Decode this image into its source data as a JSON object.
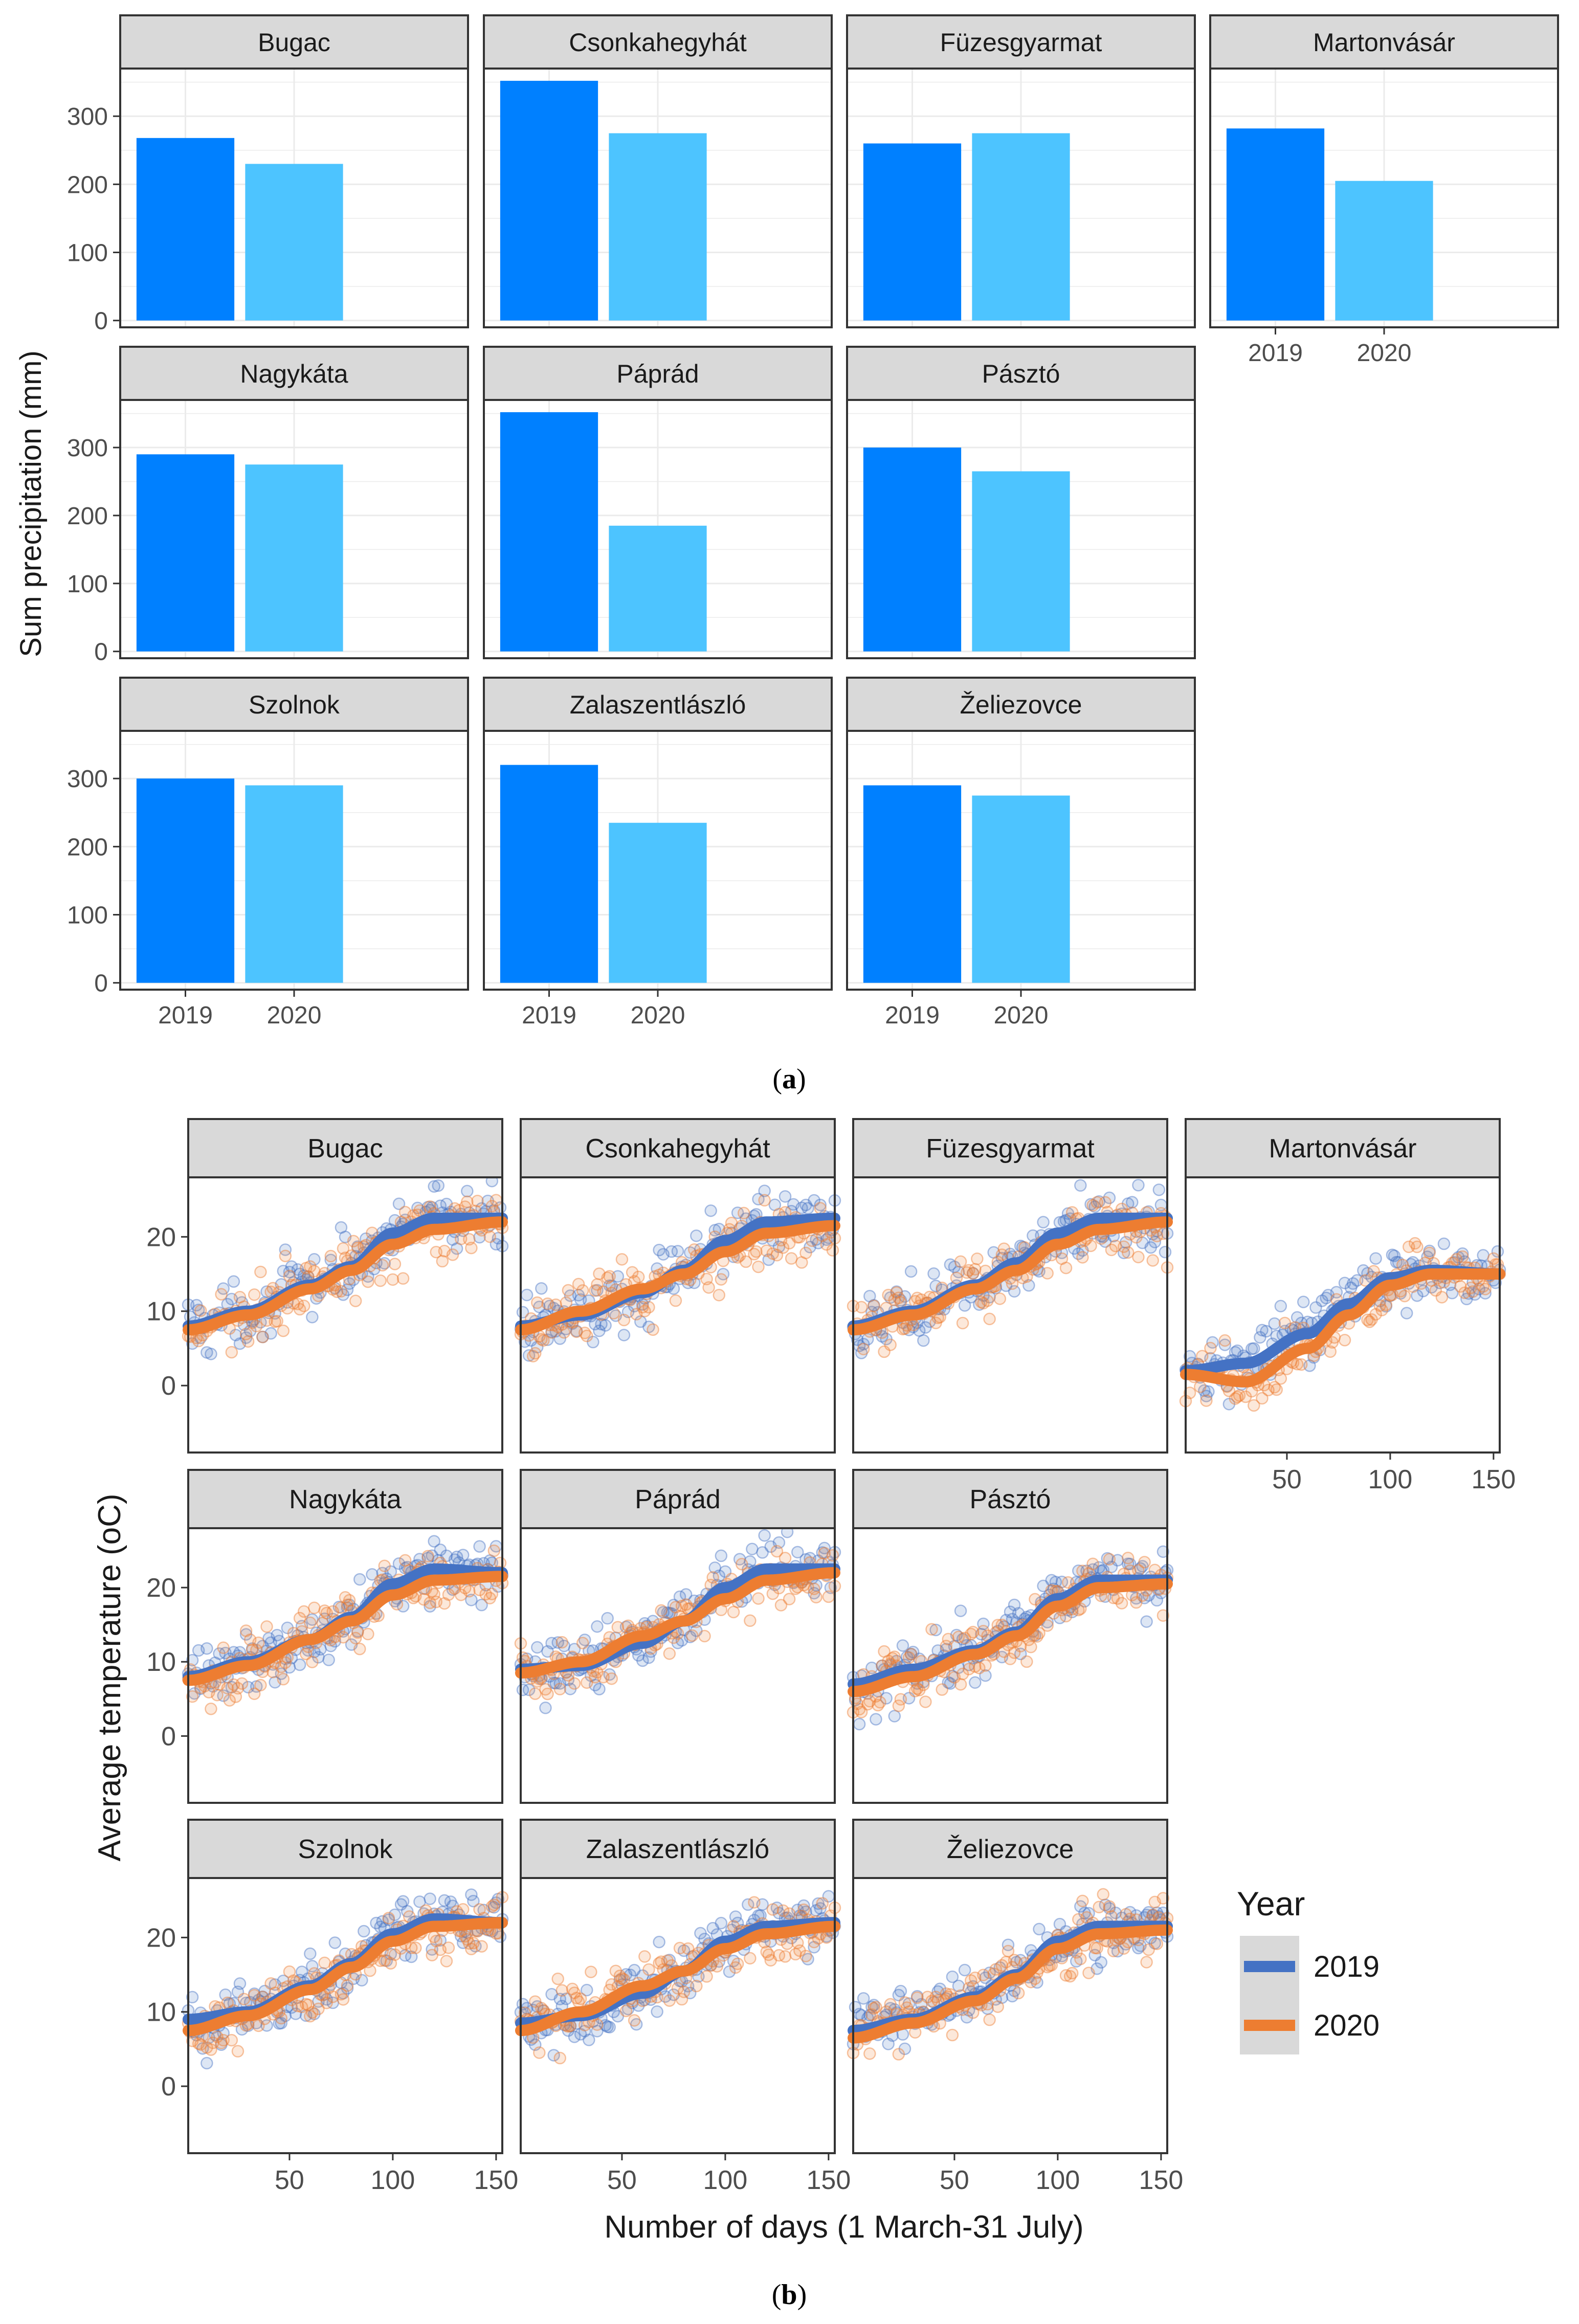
{
  "figure": {
    "caption_a": {
      "open": "(",
      "letter": "a",
      "close": ")"
    },
    "caption_b": {
      "open": "(",
      "letter": "b",
      "close": ")"
    }
  },
  "colors": {
    "bar_2019": "#0080ff",
    "bar_2020": "#4dc4ff",
    "line_2019": "#4472c4",
    "line_2020": "#ed7d31",
    "strip_fill": "#d9d9d9",
    "panel_border": "#333333",
    "grid": "#ebebeb"
  },
  "chart_data": [
    {
      "type": "bar",
      "ylabel": "Sum precipitation (mm)",
      "xlabel": "",
      "categories": [
        "2019",
        "2020"
      ],
      "yticks": [
        0,
        100,
        200,
        300
      ],
      "ylim": [
        -10,
        370
      ],
      "grid": true,
      "facets": [
        {
          "name": "Bugac",
          "values": [
            268,
            230
          ]
        },
        {
          "name": "Csonkahegyhát",
          "values": [
            352,
            275
          ]
        },
        {
          "name": "Füzesgyarmat",
          "values": [
            260,
            275
          ]
        },
        {
          "name": "Martonvásár",
          "values": [
            282,
            205
          ]
        },
        {
          "name": "Nagykáta",
          "values": [
            290,
            275
          ]
        },
        {
          "name": "Páprád",
          "values": [
            352,
            185
          ]
        },
        {
          "name": "Pásztó",
          "values": [
            300,
            265
          ]
        },
        {
          "name": "Szolnok",
          "values": [
            300,
            290
          ]
        },
        {
          "name": "Zalaszentlászló",
          "values": [
            320,
            235
          ]
        },
        {
          "name": "Želiezovce",
          "values": [
            290,
            275
          ]
        }
      ]
    },
    {
      "type": "scatter",
      "ylabel": "Average temperature (oC)",
      "xlabel": "Number of days (1 March-31 July)",
      "xlim": [
        1,
        153
      ],
      "ylim": [
        -9,
        28
      ],
      "xticks": [
        50,
        100,
        150
      ],
      "yticks": [
        0,
        10,
        20
      ],
      "grid": false,
      "legend": {
        "title": "Year",
        "position": "right",
        "entries": [
          "2019",
          "2020"
        ]
      },
      "series": [
        {
          "name": "2019",
          "color": "#4472c4"
        },
        {
          "name": "2020",
          "color": "#ed7d31"
        }
      ],
      "facets": [
        {
          "name": "Bugac",
          "trend_2019": [
            [
              1,
              8
            ],
            [
              30,
              10
            ],
            [
              60,
              13.5
            ],
            [
              80,
              16
            ],
            [
              100,
              20.5
            ],
            [
              120,
              22.5
            ],
            [
              153,
              22.5
            ]
          ],
          "trend_2020": [
            [
              1,
              7.5
            ],
            [
              30,
              9.5
            ],
            [
              60,
              13
            ],
            [
              80,
              15.5
            ],
            [
              100,
              19
            ],
            [
              120,
              21
            ],
            [
              153,
              22
            ]
          ]
        },
        {
          "name": "Csonkahegyhát",
          "trend_2019": [
            [
              1,
              8
            ],
            [
              30,
              9.5
            ],
            [
              60,
              12.5
            ],
            [
              80,
              15.5
            ],
            [
              100,
              19.5
            ],
            [
              120,
              22
            ],
            [
              153,
              22.5
            ]
          ],
          "trend_2020": [
            [
              1,
              7.5
            ],
            [
              30,
              10
            ],
            [
              60,
              13
            ],
            [
              80,
              15
            ],
            [
              100,
              18
            ],
            [
              120,
              20.5
            ],
            [
              153,
              21.5
            ]
          ]
        },
        {
          "name": "Füzesgyarmat",
          "trend_2019": [
            [
              1,
              8
            ],
            [
              30,
              10
            ],
            [
              60,
              13.5
            ],
            [
              80,
              16.5
            ],
            [
              100,
              20.5
            ],
            [
              120,
              22.5
            ],
            [
              153,
              22.5
            ]
          ],
          "trend_2020": [
            [
              1,
              7.5
            ],
            [
              30,
              9.5
            ],
            [
              60,
              13
            ],
            [
              80,
              15.5
            ],
            [
              100,
              19
            ],
            [
              120,
              21
            ],
            [
              153,
              22
            ]
          ]
        },
        {
          "name": "Martonvásár",
          "trend_2019": [
            [
              1,
              2
            ],
            [
              30,
              3
            ],
            [
              60,
              7
            ],
            [
              80,
              11
            ],
            [
              100,
              14.5
            ],
            [
              120,
              15.5
            ],
            [
              153,
              15
            ]
          ],
          "trend_2020": [
            [
              1,
              1.5
            ],
            [
              30,
              0.5
            ],
            [
              60,
              5
            ],
            [
              80,
              9.5
            ],
            [
              100,
              13.5
            ],
            [
              120,
              15
            ],
            [
              153,
              15
            ]
          ]
        },
        {
          "name": "Nagykáta",
          "trend_2019": [
            [
              1,
              8
            ],
            [
              30,
              10
            ],
            [
              60,
              13
            ],
            [
              80,
              16
            ],
            [
              100,
              20.5
            ],
            [
              120,
              22.5
            ],
            [
              153,
              22
            ]
          ],
          "trend_2020": [
            [
              1,
              7.5
            ],
            [
              30,
              9.5
            ],
            [
              60,
              13
            ],
            [
              80,
              15.5
            ],
            [
              100,
              19
            ],
            [
              120,
              21
            ],
            [
              153,
              21.5
            ]
          ]
        },
        {
          "name": "Páprád",
          "trend_2019": [
            [
              1,
              9
            ],
            [
              30,
              9.5
            ],
            [
              60,
              12.5
            ],
            [
              80,
              15.5
            ],
            [
              100,
              20
            ],
            [
              120,
              22.5
            ],
            [
              153,
              22.5
            ]
          ],
          "trend_2020": [
            [
              1,
              8.5
            ],
            [
              30,
              10
            ],
            [
              60,
              13.5
            ],
            [
              80,
              15.5
            ],
            [
              100,
              18.5
            ],
            [
              120,
              21
            ],
            [
              153,
              22
            ]
          ]
        },
        {
          "name": "Pásztó",
          "trend_2019": [
            [
              1,
              7
            ],
            [
              30,
              9
            ],
            [
              60,
              11.5
            ],
            [
              80,
              14
            ],
            [
              100,
              18.5
            ],
            [
              120,
              21
            ],
            [
              153,
              21
            ]
          ],
          "trend_2020": [
            [
              1,
              6
            ],
            [
              30,
              8
            ],
            [
              60,
              11
            ],
            [
              80,
              13.5
            ],
            [
              100,
              17.5
            ],
            [
              120,
              20
            ],
            [
              153,
              20.5
            ]
          ]
        },
        {
          "name": "Szolnok",
          "trend_2019": [
            [
              1,
              9
            ],
            [
              30,
              10
            ],
            [
              60,
              13.5
            ],
            [
              80,
              16.5
            ],
            [
              100,
              20.5
            ],
            [
              120,
              22.5
            ],
            [
              153,
              22
            ]
          ],
          "trend_2020": [
            [
              1,
              7.5
            ],
            [
              30,
              9.5
            ],
            [
              60,
              13
            ],
            [
              80,
              16
            ],
            [
              100,
              19.5
            ],
            [
              120,
              21.5
            ],
            [
              153,
              22
            ]
          ]
        },
        {
          "name": "Zalaszentlászló",
          "trend_2019": [
            [
              1,
              8.5
            ],
            [
              30,
              9.5
            ],
            [
              60,
              12.5
            ],
            [
              80,
              15.5
            ],
            [
              100,
              19.5
            ],
            [
              120,
              21.5
            ],
            [
              153,
              22
            ]
          ],
          "trend_2020": [
            [
              1,
              7.5
            ],
            [
              30,
              10
            ],
            [
              60,
              13.5
            ],
            [
              80,
              15.5
            ],
            [
              100,
              18.5
            ],
            [
              120,
              20.5
            ],
            [
              153,
              21.5
            ]
          ]
        },
        {
          "name": "Želiezovce",
          "trend_2019": [
            [
              1,
              7.5
            ],
            [
              30,
              9
            ],
            [
              60,
              12
            ],
            [
              80,
              15
            ],
            [
              100,
              19.5
            ],
            [
              120,
              21.5
            ],
            [
              153,
              21.5
            ]
          ],
          "trend_2020": [
            [
              1,
              6.5
            ],
            [
              30,
              8.5
            ],
            [
              60,
              11.5
            ],
            [
              80,
              14.5
            ],
            [
              100,
              18.5
            ],
            [
              120,
              20.5
            ],
            [
              153,
              21
            ]
          ]
        }
      ]
    }
  ]
}
